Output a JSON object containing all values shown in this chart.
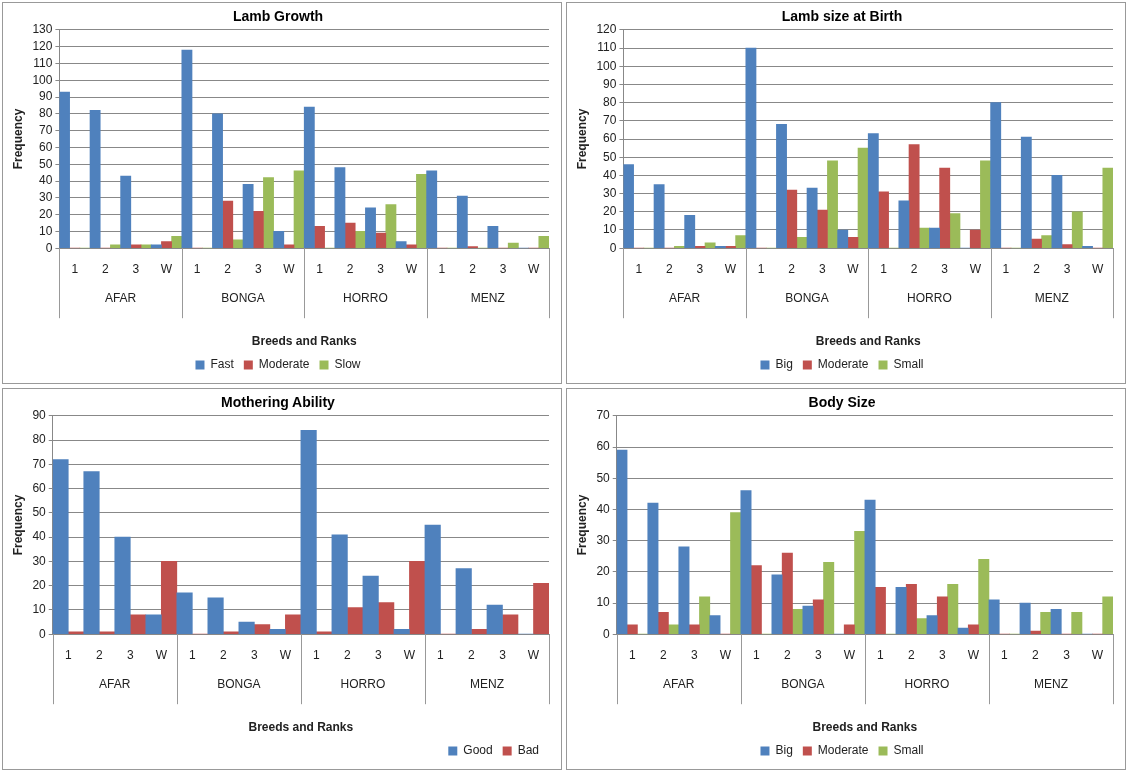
{
  "chart_data": [
    {
      "type": "bar",
      "title": "Lamb Growth",
      "xlabel": "Breeds and Ranks",
      "ylabel": "Frequency",
      "categories": [
        "1",
        "2",
        "3",
        "W",
        "1",
        "2",
        "3",
        "W",
        "1",
        "2",
        "3",
        "W",
        "1",
        "2",
        "3",
        "W"
      ],
      "annotations": [
        "AFAR",
        "BONGA",
        "HORRO",
        "MENZ"
      ],
      "ylim": [
        0,
        130
      ],
      "yticks": [
        0,
        10,
        20,
        30,
        40,
        50,
        60,
        70,
        80,
        90,
        100,
        110,
        120,
        130
      ],
      "grid": "y",
      "legend": "bottom",
      "series": [
        {
          "name": "Fast",
          "color": "#4f81bd",
          "values": [
            93,
            82,
            43,
            2,
            118,
            80,
            38,
            10,
            84,
            48,
            24,
            4,
            46,
            31,
            13,
            0
          ]
        },
        {
          "name": "Moderate",
          "color": "#c0504d",
          "values": [
            0,
            0,
            2,
            4,
            0,
            28,
            22,
            2,
            13,
            15,
            9,
            2,
            0,
            1,
            0,
            0
          ]
        },
        {
          "name": "Slow",
          "color": "#9bbb59",
          "values": [
            0,
            2,
            2,
            7,
            0,
            5,
            42,
            46,
            0,
            10,
            26,
            44,
            0,
            0,
            3,
            7
          ]
        }
      ]
    },
    {
      "type": "bar",
      "title": "Lamb size at Birth",
      "xlabel": "Breeds and Ranks",
      "ylabel": "Frequency",
      "categories": [
        "1",
        "2",
        "3",
        "W",
        "1",
        "2",
        "3",
        "W",
        "1",
        "2",
        "3",
        "W",
        "1",
        "2",
        "3",
        "W"
      ],
      "annotations": [
        "AFAR",
        "BONGA",
        "HORRO",
        "MENZ"
      ],
      "ylim": [
        0,
        120
      ],
      "yticks": [
        0,
        10,
        20,
        30,
        40,
        50,
        60,
        70,
        80,
        90,
        100,
        110,
        120
      ],
      "grid": "y",
      "legend": "bottom",
      "series": [
        {
          "name": "Big",
          "color": "#4f81bd",
          "values": [
            46,
            35,
            18,
            1,
            110,
            68,
            33,
            10,
            63,
            26,
            11,
            0,
            80,
            61,
            40,
            1
          ]
        },
        {
          "name": "Moderate",
          "color": "#c0504d",
          "values": [
            0,
            0,
            1,
            1,
            0,
            32,
            21,
            6,
            31,
            57,
            44,
            10,
            0,
            5,
            2,
            0
          ]
        },
        {
          "name": "Small",
          "color": "#9bbb59",
          "values": [
            0,
            1,
            3,
            7,
            0,
            6,
            48,
            55,
            0,
            11,
            19,
            48,
            0,
            7,
            20,
            44
          ]
        }
      ]
    },
    {
      "type": "bar",
      "title": "Mothering Ability",
      "xlabel": "Breeds and Ranks",
      "ylabel": "Frequency",
      "categories": [
        "1",
        "2",
        "3",
        "W",
        "1",
        "2",
        "3",
        "W",
        "1",
        "2",
        "3",
        "W",
        "1",
        "2",
        "3",
        "W"
      ],
      "annotations": [
        "AFAR",
        "BONGA",
        "HORRO",
        "MENZ"
      ],
      "ylim": [
        0,
        90
      ],
      "yticks": [
        0,
        10,
        20,
        30,
        40,
        50,
        60,
        70,
        80,
        90
      ],
      "grid": "y",
      "legend": "bottom right",
      "series": [
        {
          "name": "Good",
          "color": "#4f81bd",
          "values": [
            72,
            67,
            40,
            8,
            17,
            15,
            5,
            2,
            84,
            41,
            24,
            2,
            45,
            27,
            12,
            0
          ]
        },
        {
          "name": "Bad",
          "color": "#c0504d",
          "values": [
            1,
            1,
            8,
            30,
            0,
            1,
            4,
            8,
            1,
            11,
            13,
            30,
            0,
            2,
            8,
            21
          ]
        }
      ]
    },
    {
      "type": "bar",
      "title": "Body Size",
      "xlabel": "Breeds and Ranks",
      "ylabel": "Frequency",
      "categories": [
        "1",
        "2",
        "3",
        "W",
        "1",
        "2",
        "3",
        "W",
        "1",
        "2",
        "3",
        "W",
        "1",
        "2",
        "3",
        "W"
      ],
      "annotations": [
        "AFAR",
        "BONGA",
        "HORRO",
        "MENZ"
      ],
      "ylim": [
        0,
        70
      ],
      "yticks": [
        0,
        10,
        20,
        30,
        40,
        50,
        60,
        70
      ],
      "grid": "y",
      "legend": "bottom",
      "series": [
        {
          "name": "Big",
          "color": "#4f81bd",
          "values": [
            59,
            42,
            28,
            6,
            46,
            19,
            9,
            0,
            43,
            15,
            6,
            2,
            11,
            10,
            8,
            0
          ]
        },
        {
          "name": "Moderate",
          "color": "#c0504d",
          "values": [
            3,
            7,
            3,
            0,
            22,
            26,
            11,
            3,
            15,
            16,
            12,
            3,
            0,
            1,
            0,
            0
          ]
        },
        {
          "name": "Small",
          "color": "#9bbb59",
          "values": [
            0,
            3,
            12,
            39,
            0,
            8,
            23,
            33,
            0,
            5,
            16,
            24,
            0,
            7,
            7,
            12
          ]
        }
      ]
    }
  ]
}
